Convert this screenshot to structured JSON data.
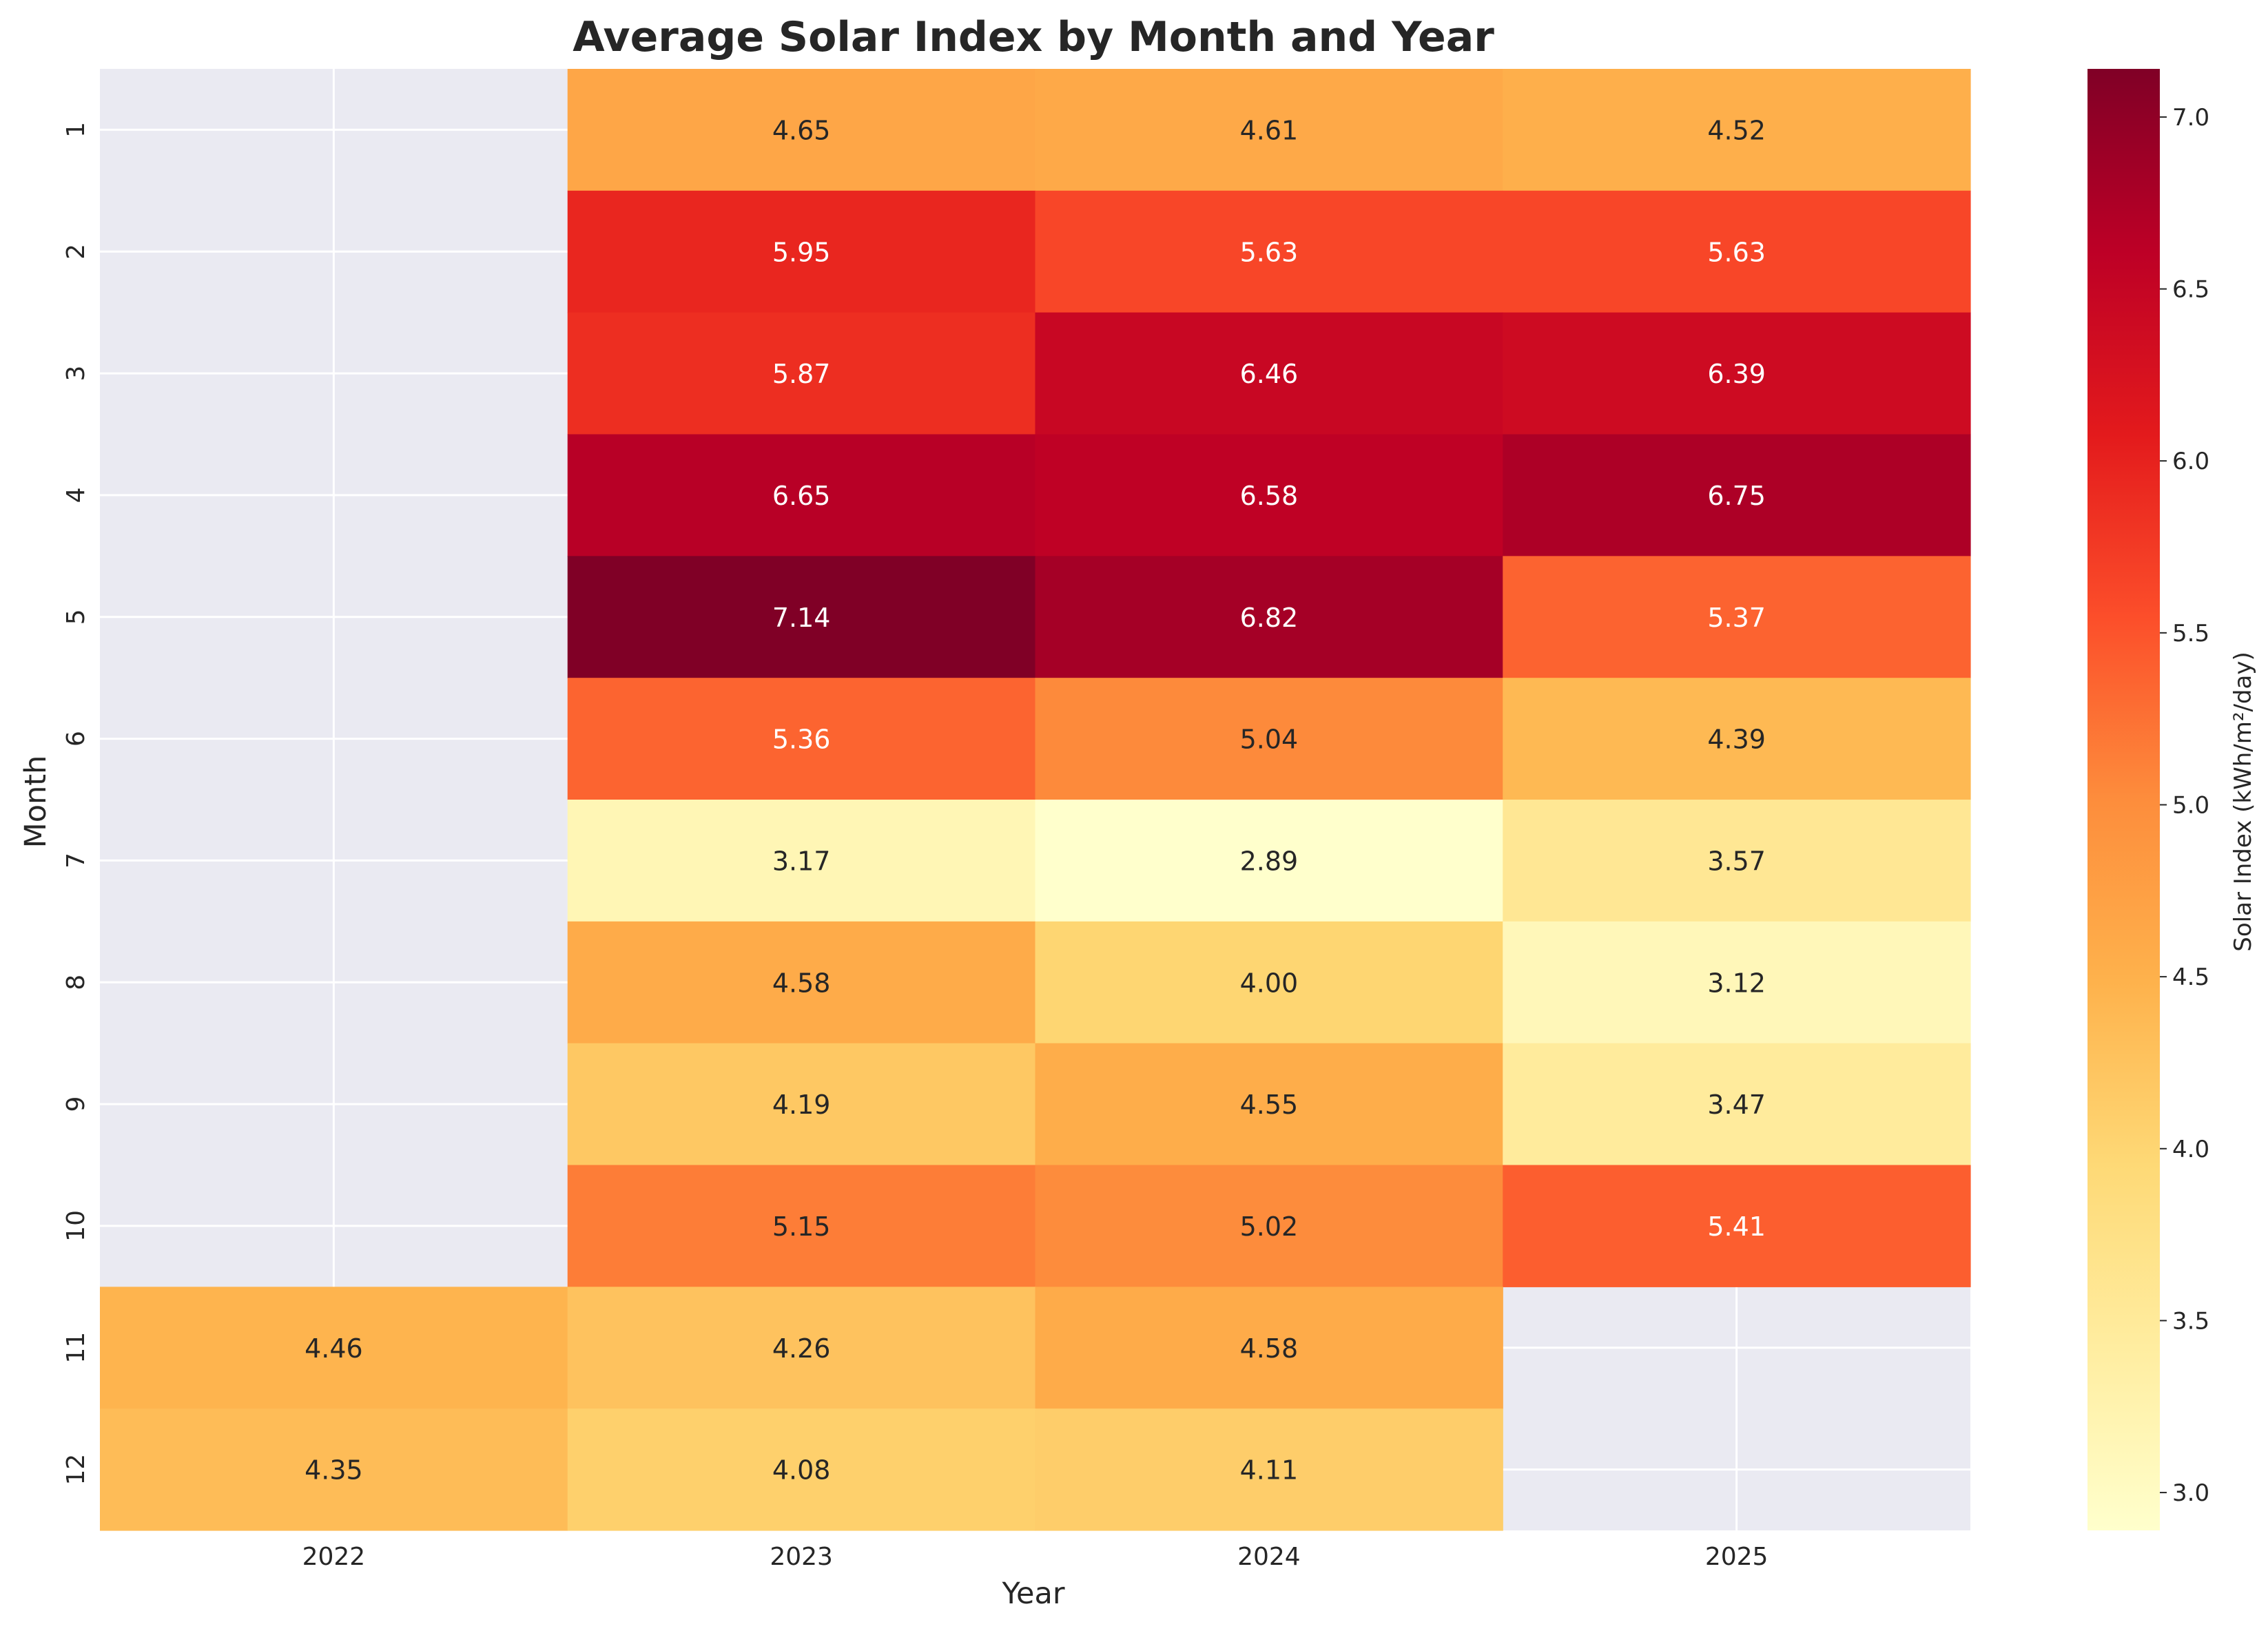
{
  "chart_data": {
    "type": "heatmap",
    "title": "Average Solar Index by Month and Year",
    "xlabel": "Year",
    "ylabel": "Month",
    "x_categories": [
      "2022",
      "2023",
      "2024",
      "2025"
    ],
    "y_categories": [
      "1",
      "2",
      "3",
      "4",
      "5",
      "6",
      "7",
      "8",
      "9",
      "10",
      "11",
      "12"
    ],
    "values": [
      [
        null,
        4.65,
        4.61,
        4.52
      ],
      [
        null,
        5.95,
        5.63,
        5.63
      ],
      [
        null,
        5.87,
        6.46,
        6.39
      ],
      [
        null,
        6.65,
        6.58,
        6.75
      ],
      [
        null,
        7.14,
        6.82,
        5.37
      ],
      [
        null,
        5.36,
        5.04,
        4.39
      ],
      [
        null,
        3.17,
        2.89,
        3.57
      ],
      [
        null,
        4.58,
        4.0,
        3.12
      ],
      [
        null,
        4.19,
        4.55,
        3.47
      ],
      [
        null,
        5.15,
        5.02,
        5.41
      ],
      [
        4.46,
        4.26,
        4.58,
        null
      ],
      [
        4.35,
        4.08,
        4.11,
        null
      ]
    ],
    "value_format": "2 decimals",
    "colormap": "YlOrRd",
    "missing_color": "#eaeaf2",
    "grid": true,
    "colorbar": {
      "label": "Solar Index (kWh/m²/day)",
      "range": [
        2.89,
        7.14
      ],
      "ticks": [
        "3.0",
        "3.5",
        "4.0",
        "4.5",
        "5.0",
        "5.5",
        "6.0",
        "6.5",
        "7.0"
      ]
    }
  }
}
